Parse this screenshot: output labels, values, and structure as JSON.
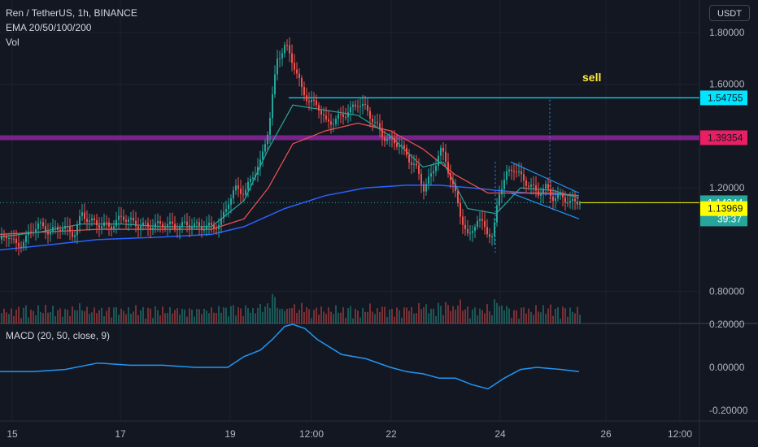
{
  "header": {
    "symbol_line": "Ren / TetherUS, 1h, BINANCE",
    "ema_line": "EMA 20/50/100/200",
    "vol_label": "Vol",
    "currency_button": "USDT",
    "macd_label": "MACD (20, 50, close, 9)"
  },
  "colors": {
    "background": "#131722",
    "up_candle": "#26a69a",
    "down_candle": "#ef5350",
    "ema20": "#26a69a",
    "ema50": "#ef5350",
    "ema100": "#2962ff",
    "macd_line": "#2196f3",
    "cyan_level": "#00e5ff",
    "magenta_zone": "#9c27b0",
    "yellow_level": "#ffff00",
    "trend_channel": "#2196f3",
    "sell_text": "#ffeb3b"
  },
  "annotation": {
    "text": "sell"
  },
  "chart_data": [
    {
      "type": "candlestick",
      "x_ticks": [
        "15",
        "17",
        "19",
        "12:00",
        "22",
        "24",
        "26",
        "12:00"
      ],
      "y_ticks": [
        "1.80000",
        "1.60000",
        "1.20000",
        "0.80000"
      ],
      "ylim": [
        0.72,
        1.87
      ],
      "horizontal_levels": [
        {
          "value": 1.54755,
          "label": "1.54755",
          "color": "#00e5ff",
          "label_bg": "#00e5ff",
          "label_fg": "#131722"
        },
        {
          "value": 1.39354,
          "label": "1.39354",
          "color": "#9c27b0",
          "label_bg": "#e91e63",
          "label_fg": "#131722"
        },
        {
          "value": 1.13969,
          "label": "1.13969",
          "color": "#ffff00",
          "label_bg": "#ffff00",
          "label_fg": "#131722"
        }
      ],
      "last_price": {
        "value": 1.14244,
        "label": "1.14244",
        "countdown": "39:37"
      },
      "price_path": [
        [
          0,
          1.0
        ],
        [
          10,
          1.02
        ],
        [
          20,
          0.97
        ],
        [
          35,
          1.02
        ],
        [
          45,
          1.06
        ],
        [
          60,
          1.03
        ],
        [
          75,
          1.05
        ],
        [
          90,
          1.02
        ],
        [
          100,
          1.1
        ],
        [
          110,
          1.07
        ],
        [
          120,
          1.06
        ],
        [
          135,
          1.05
        ],
        [
          150,
          1.09
        ],
        [
          165,
          1.06
        ],
        [
          180,
          1.05
        ],
        [
          200,
          1.06
        ],
        [
          215,
          1.05
        ],
        [
          230,
          1.06
        ],
        [
          245,
          1.05
        ],
        [
          260,
          1.05
        ],
        [
          270,
          1.06
        ],
        [
          280,
          1.15
        ],
        [
          290,
          1.2
        ],
        [
          300,
          1.18
        ],
        [
          310,
          1.25
        ],
        [
          320,
          1.3
        ],
        [
          330,
          1.45
        ],
        [
          340,
          1.7
        ],
        [
          350,
          1.75
        ],
        [
          360,
          1.68
        ],
        [
          370,
          1.58
        ],
        [
          380,
          1.53
        ],
        [
          390,
          1.52
        ],
        [
          400,
          1.45
        ],
        [
          410,
          1.46
        ],
        [
          420,
          1.48
        ],
        [
          430,
          1.5
        ],
        [
          440,
          1.53
        ],
        [
          450,
          1.5
        ],
        [
          460,
          1.45
        ],
        [
          470,
          1.4
        ],
        [
          480,
          1.38
        ],
        [
          490,
          1.37
        ],
        [
          500,
          1.32
        ],
        [
          510,
          1.28
        ],
        [
          520,
          1.2
        ],
        [
          530,
          1.25
        ],
        [
          540,
          1.35
        ],
        [
          545,
          1.32
        ],
        [
          555,
          1.22
        ],
        [
          565,
          1.1
        ],
        [
          575,
          1.0
        ],
        [
          585,
          1.08
        ],
        [
          595,
          1.05
        ],
        [
          605,
          1.0
        ],
        [
          612,
          1.18
        ],
        [
          622,
          1.25
        ],
        [
          630,
          1.28
        ],
        [
          640,
          1.24
        ],
        [
          650,
          1.21
        ],
        [
          660,
          1.18
        ],
        [
          670,
          1.2
        ],
        [
          680,
          1.16
        ],
        [
          690,
          1.17
        ],
        [
          700,
          1.14
        ],
        [
          710,
          1.15
        ]
      ],
      "ema20_path": [
        [
          0,
          1.01
        ],
        [
          50,
          1.03
        ],
        [
          100,
          1.06
        ],
        [
          150,
          1.06
        ],
        [
          200,
          1.05
        ],
        [
          260,
          1.05
        ],
        [
          300,
          1.15
        ],
        [
          330,
          1.35
        ],
        [
          360,
          1.52
        ],
        [
          400,
          1.5
        ],
        [
          440,
          1.48
        ],
        [
          480,
          1.4
        ],
        [
          520,
          1.28
        ],
        [
          545,
          1.3
        ],
        [
          575,
          1.12
        ],
        [
          610,
          1.1
        ],
        [
          640,
          1.2
        ],
        [
          680,
          1.19
        ],
        [
          712,
          1.16
        ]
      ],
      "ema50_path": [
        [
          0,
          1.02
        ],
        [
          60,
          1.03
        ],
        [
          120,
          1.04
        ],
        [
          200,
          1.04
        ],
        [
          260,
          1.04
        ],
        [
          300,
          1.08
        ],
        [
          330,
          1.2
        ],
        [
          360,
          1.37
        ],
        [
          400,
          1.42
        ],
        [
          440,
          1.45
        ],
        [
          480,
          1.42
        ],
        [
          520,
          1.35
        ],
        [
          560,
          1.25
        ],
        [
          600,
          1.18
        ],
        [
          640,
          1.18
        ],
        [
          680,
          1.18
        ],
        [
          712,
          1.17
        ]
      ],
      "ema100_path": [
        [
          0,
          0.96
        ],
        [
          60,
          0.98
        ],
        [
          120,
          1.0
        ],
        [
          200,
          1.01
        ],
        [
          260,
          1.02
        ],
        [
          300,
          1.05
        ],
        [
          350,
          1.12
        ],
        [
          400,
          1.17
        ],
        [
          450,
          1.2
        ],
        [
          500,
          1.21
        ],
        [
          540,
          1.21
        ],
        [
          580,
          1.2
        ],
        [
          610,
          1.19
        ],
        [
          650,
          1.18
        ],
        [
          712,
          1.17
        ]
      ],
      "channel_upper": [
        [
          628,
          1.3
        ],
        [
          712,
          1.18
        ]
      ],
      "channel_lower": [
        [
          628,
          1.18
        ],
        [
          712,
          1.08
        ]
      ]
    },
    {
      "type": "line",
      "name": "MACD",
      "y_ticks": [
        "0.20000",
        "0.00000",
        "-0.20000"
      ],
      "ylim": [
        -0.24,
        0.22
      ],
      "x": [
        0,
        40,
        80,
        120,
        160,
        200,
        240,
        280,
        300,
        320,
        335,
        350,
        360,
        375,
        390,
        420,
        450,
        480,
        500,
        520,
        540,
        560,
        580,
        600,
        620,
        640,
        660,
        690,
        712
      ],
      "values": [
        -0.02,
        -0.02,
        -0.01,
        0.02,
        0.01,
        0.01,
        0.0,
        0.0,
        0.05,
        0.08,
        0.13,
        0.19,
        0.2,
        0.18,
        0.13,
        0.06,
        0.04,
        0.0,
        -0.02,
        -0.03,
        -0.05,
        -0.05,
        -0.08,
        -0.1,
        -0.05,
        -0.01,
        0.0,
        -0.01,
        -0.02
      ]
    }
  ]
}
